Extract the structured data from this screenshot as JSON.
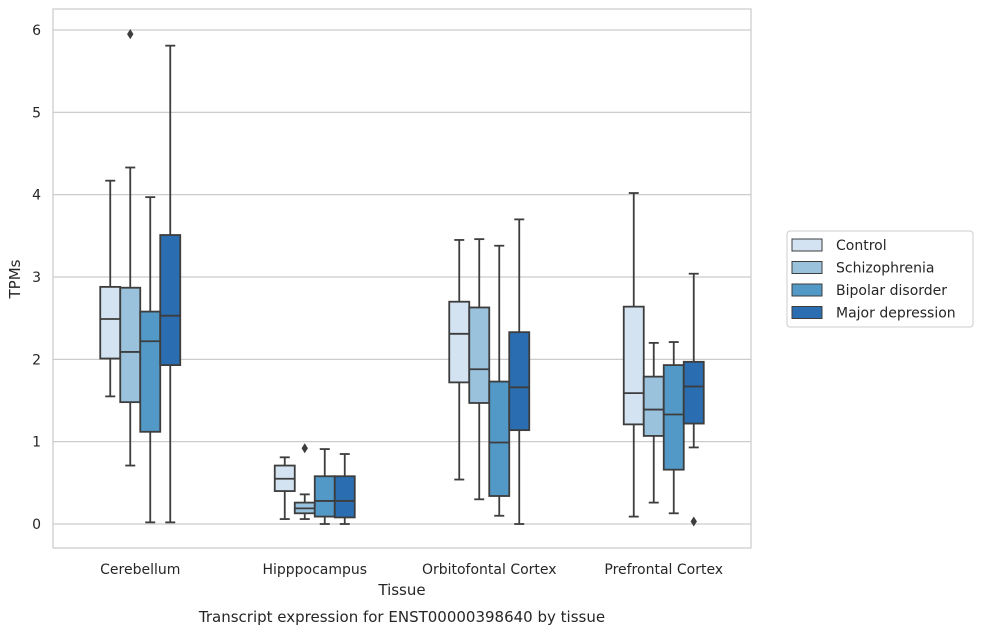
{
  "chart_data": {
    "type": "box",
    "xlabel": "Tissue",
    "ylabel": "TPMs",
    "caption": "Transcript expression for ENST00000398640 by tissue",
    "ylim": [
      -0.3,
      6.27
    ],
    "yticks": [
      0,
      1,
      2,
      3,
      4,
      5,
      6
    ],
    "grid": "horizontal",
    "legend_position": "right",
    "categories": [
      "Cerebellum",
      "Hipppocampus",
      "Orbitofontal Cortex",
      "Prefrontal Cortex"
    ],
    "series": [
      {
        "name": "Control",
        "color": "#d3e3f2",
        "boxes": [
          {
            "min": 1.55,
            "q1": 2.01,
            "median": 2.49,
            "q3": 2.88,
            "max": 4.17,
            "outliers": []
          },
          {
            "min": 0.06,
            "q1": 0.4,
            "median": 0.55,
            "q3": 0.71,
            "max": 0.81,
            "outliers": []
          },
          {
            "min": 0.54,
            "q1": 1.72,
            "median": 2.31,
            "q3": 2.7,
            "max": 3.45,
            "outliers": []
          },
          {
            "min": 0.09,
            "q1": 1.21,
            "median": 1.59,
            "q3": 2.64,
            "max": 4.02,
            "outliers": []
          }
        ]
      },
      {
        "name": "Schizophrenia",
        "color": "#9ac2dd",
        "boxes": [
          {
            "min": 0.71,
            "q1": 1.48,
            "median": 2.09,
            "q3": 2.87,
            "max": 4.33,
            "outliers": [
              5.95
            ]
          },
          {
            "min": 0.06,
            "q1": 0.13,
            "median": 0.19,
            "q3": 0.26,
            "max": 0.36,
            "outliers": [
              0.92
            ]
          },
          {
            "min": 0.3,
            "q1": 1.47,
            "median": 1.88,
            "q3": 2.63,
            "max": 3.46,
            "outliers": []
          },
          {
            "min": 0.26,
            "q1": 1.07,
            "median": 1.39,
            "q3": 1.79,
            "max": 2.2,
            "outliers": []
          }
        ]
      },
      {
        "name": "Bipolar disorder",
        "color": "#5299c8",
        "boxes": [
          {
            "min": 0.02,
            "q1": 1.12,
            "median": 2.22,
            "q3": 2.58,
            "max": 3.97,
            "outliers": []
          },
          {
            "min": 0.0,
            "q1": 0.09,
            "median": 0.28,
            "q3": 0.58,
            "max": 0.91,
            "outliers": []
          },
          {
            "min": 0.1,
            "q1": 0.34,
            "median": 0.99,
            "q3": 1.73,
            "max": 3.38,
            "outliers": []
          },
          {
            "min": 0.13,
            "q1": 0.66,
            "median": 1.33,
            "q3": 1.93,
            "max": 2.21,
            "outliers": []
          }
        ]
      },
      {
        "name": "Major depression",
        "color": "#2a6db0",
        "boxes": [
          {
            "min": 0.02,
            "q1": 1.93,
            "median": 2.53,
            "q3": 3.51,
            "max": 5.81,
            "outliers": []
          },
          {
            "min": 0.0,
            "q1": 0.08,
            "median": 0.28,
            "q3": 0.58,
            "max": 0.85,
            "outliers": []
          },
          {
            "min": 0.0,
            "q1": 1.14,
            "median": 1.66,
            "q3": 2.33,
            "max": 3.7,
            "outliers": []
          },
          {
            "min": 0.93,
            "q1": 1.22,
            "median": 1.67,
            "q3": 1.97,
            "max": 3.04,
            "outliers": [
              0.03
            ]
          }
        ]
      }
    ]
  }
}
